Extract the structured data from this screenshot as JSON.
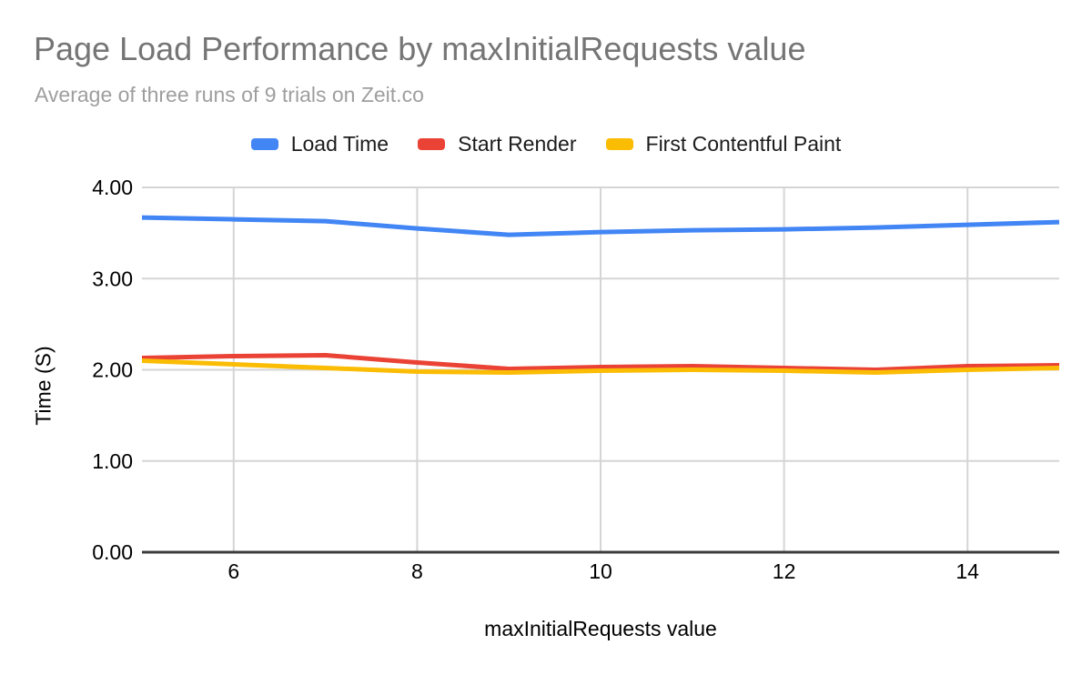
{
  "header": {
    "title": "Page Load Performance by maxInitialRequests value",
    "subtitle": "Average of three runs of 9 trials on Zeit.co"
  },
  "colors": {
    "title_text": "#757575",
    "subtitle_text": "#9E9E9E",
    "gridline": "#D5D5D5",
    "baseline": "#3C3C3C",
    "background": "#FFFFFF",
    "blue": "#4285F4",
    "red": "#EA4335",
    "yellow": "#FBBC04"
  },
  "chart_data": {
    "type": "line",
    "title": "Page Load Performance by maxInitialRequests value",
    "subtitle": "Average of three runs of 9 trials on Zeit.co",
    "xlabel": "maxInitialRequests value",
    "ylabel": "Time (S)",
    "x": [
      5,
      6,
      7,
      8,
      9,
      10,
      11,
      12,
      13,
      14,
      15
    ],
    "series": [
      {
        "name": "Load Time",
        "color": "#4285F4",
        "values": [
          3.67,
          3.65,
          3.63,
          3.55,
          3.48,
          3.51,
          3.53,
          3.54,
          3.56,
          3.59,
          3.62
        ]
      },
      {
        "name": "Start Render",
        "color": "#EA4335",
        "values": [
          2.13,
          2.15,
          2.16,
          2.08,
          2.01,
          2.03,
          2.04,
          2.02,
          2.0,
          2.04,
          2.05
        ]
      },
      {
        "name": "First Contentful Paint",
        "color": "#FBBC04",
        "values": [
          2.1,
          2.06,
          2.02,
          1.98,
          1.97,
          1.99,
          2.0,
          1.99,
          1.97,
          2.0,
          2.02
        ]
      }
    ],
    "xlim": [
      5,
      15
    ],
    "ylim": [
      0,
      4
    ],
    "xticks": [
      6,
      8,
      10,
      12,
      14
    ],
    "ytick_values": [
      0,
      1,
      2,
      3,
      4
    ],
    "ytick_labels": [
      "0.00",
      "1.00",
      "2.00",
      "3.00",
      "4.00"
    ],
    "grid": true,
    "legend_position": "top"
  }
}
